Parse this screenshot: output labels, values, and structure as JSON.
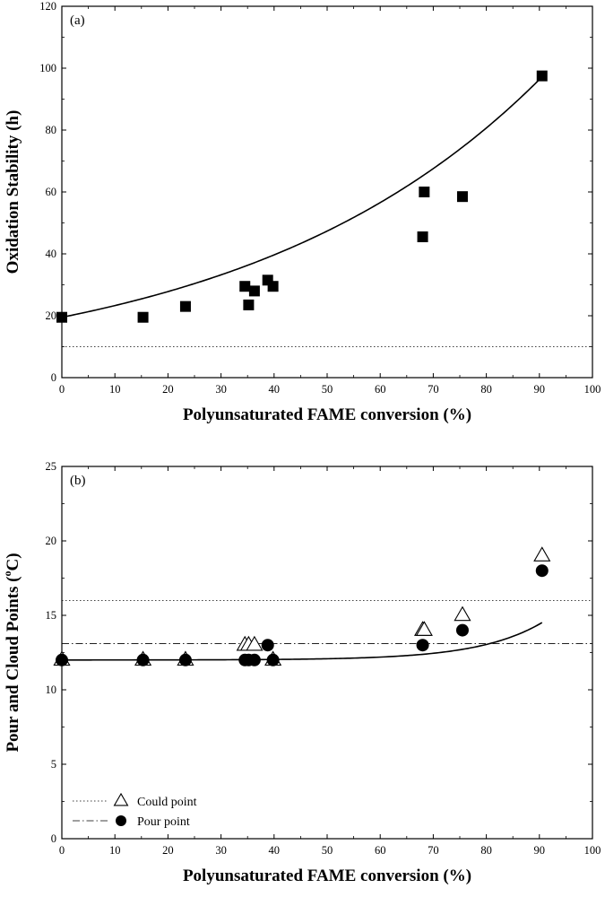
{
  "chart_data": [
    {
      "type": "scatter",
      "panel_label": "(a)",
      "xlabel": "Polyunsaturated FAME conversion (%)",
      "ylabel": "Oxidation Stability (h)",
      "xlim": [
        0,
        100
      ],
      "ylim": [
        0,
        120
      ],
      "xticks": [
        "0",
        "10",
        "20",
        "30",
        "40",
        "50",
        "60",
        "70",
        "80",
        "90",
        "100"
      ],
      "yticks": [
        "0",
        "20",
        "40",
        "60",
        "80",
        "100",
        "120"
      ],
      "series": [
        {
          "name": "Oxidation stability",
          "marker": "square",
          "x": [
            0,
            15.3,
            23.3,
            34.5,
            35.2,
            36.3,
            38.8,
            39.8,
            68.0,
            68.3,
            75.5,
            90.5
          ],
          "y": [
            19.5,
            19.5,
            23.0,
            29.5,
            23.5,
            28.0,
            31.5,
            29.5,
            45.5,
            60.0,
            58.5,
            97.5
          ]
        }
      ],
      "fit_curve": {
        "form": "exponential",
        "a": 19.5,
        "b": 0.01775,
        "x_range": [
          0,
          90.5
        ]
      },
      "reference_line": {
        "y": 10,
        "style": "dotted"
      }
    },
    {
      "type": "scatter",
      "panel_label": "(b)",
      "xlabel": "Polyunsaturated FAME conversion (%)",
      "ylabel_main": "Pour and Cloud Points (",
      "ylabel_sup": "o",
      "ylabel_unit": "C)",
      "xlim": [
        0,
        100
      ],
      "ylim": [
        0,
        25
      ],
      "xticks": [
        "0",
        "10",
        "20",
        "30",
        "40",
        "50",
        "60",
        "70",
        "80",
        "90",
        "100"
      ],
      "yticks": [
        "0",
        "5",
        "10",
        "15",
        "20",
        "25"
      ],
      "series": [
        {
          "name": "Could point",
          "marker": "open-triangle",
          "x": [
            0,
            15.3,
            23.3,
            34.5,
            35.2,
            36.3,
            39.8,
            68.0,
            68.3,
            75.5,
            90.5
          ],
          "y": [
            12,
            12,
            12,
            13,
            13,
            13,
            12,
            14,
            14,
            15,
            19
          ]
        },
        {
          "name": "Pour point",
          "marker": "filled-circle",
          "x": [
            0,
            15.3,
            23.3,
            34.5,
            35.2,
            36.3,
            38.8,
            39.8,
            68.0,
            75.5,
            90.5
          ],
          "y": [
            12,
            12,
            12,
            12,
            12,
            12,
            13,
            12,
            13,
            14,
            18
          ]
        }
      ],
      "fit_curve": {
        "form": "exponential-offset",
        "c": 12.0,
        "a": 0.00129,
        "b": 0.0837,
        "x_range": [
          0,
          90.5
        ]
      },
      "reference_lines": [
        {
          "y": 16,
          "style": "dotted",
          "series": "Could point"
        },
        {
          "y": 13.1,
          "style": "dash-dot",
          "series": "Pour point"
        }
      ],
      "legend": {
        "position": "bottom-left",
        "entries": [
          {
            "label": "Could point",
            "line": "dotted",
            "marker": "open-triangle"
          },
          {
            "label": "Pour point",
            "line": "dash-dot",
            "marker": "filled-circle"
          }
        ]
      }
    }
  ]
}
